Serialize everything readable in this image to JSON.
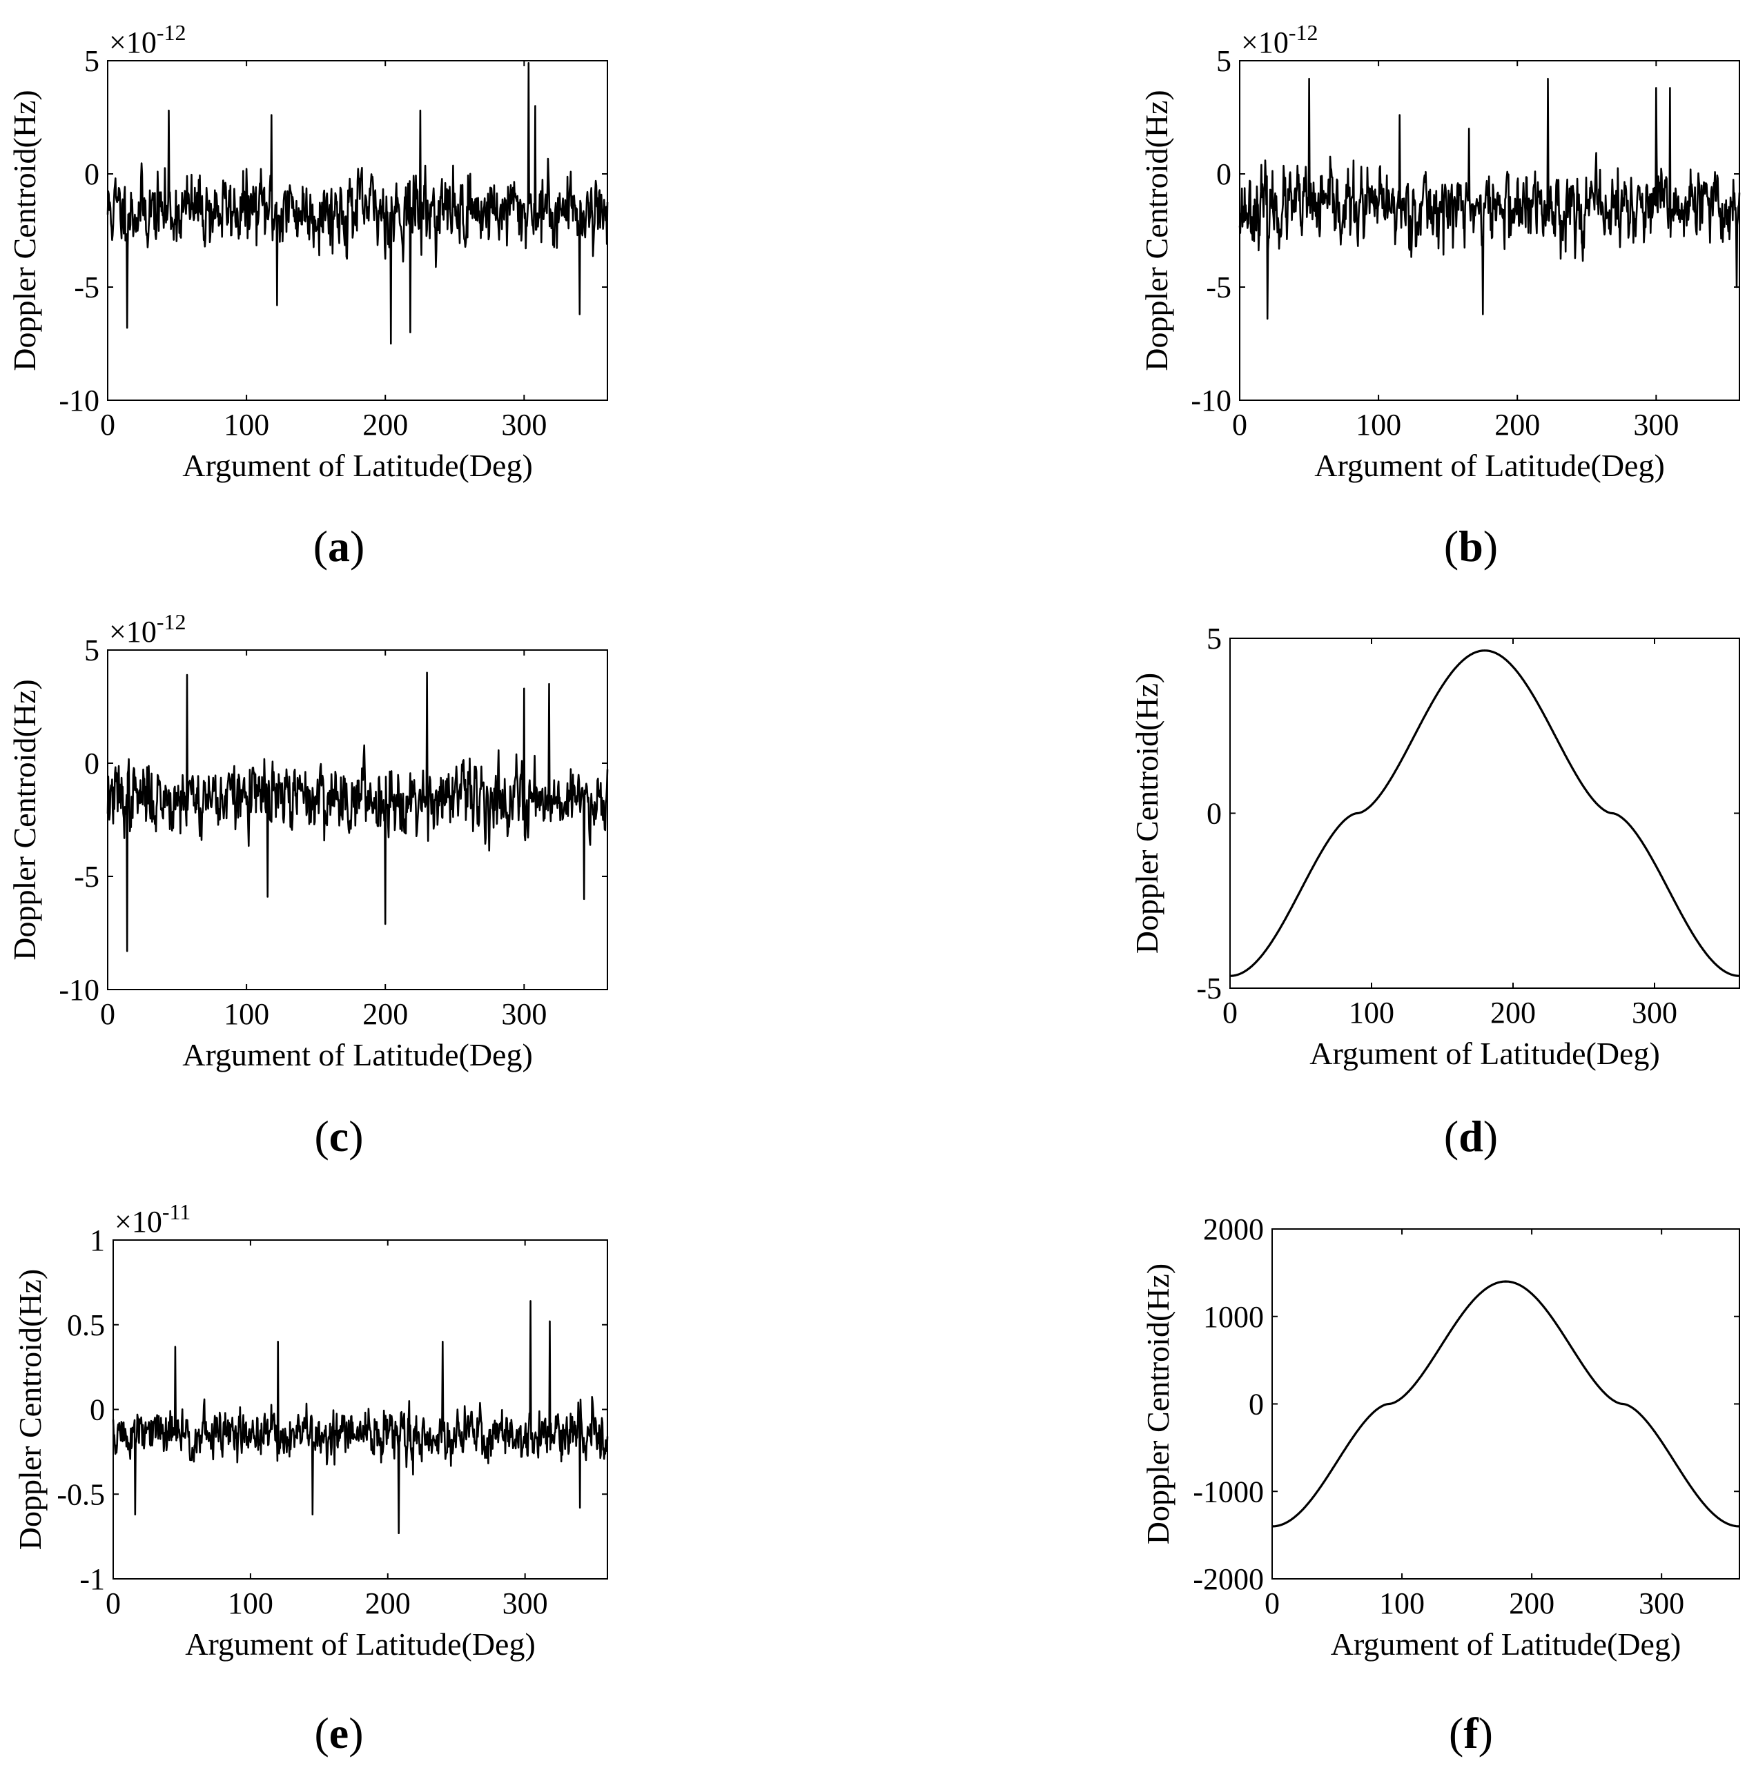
{
  "figure": {
    "panels": [
      {
        "id": "a",
        "label_open": "(",
        "label_letter": "a",
        "label_close": ")"
      },
      {
        "id": "b",
        "label_open": "(",
        "label_letter": "b",
        "label_close": ")"
      },
      {
        "id": "c",
        "label_open": "(",
        "label_letter": "c",
        "label_close": ")"
      },
      {
        "id": "d",
        "label_open": "(",
        "label_letter": "d",
        "label_close": ")"
      },
      {
        "id": "e",
        "label_open": "(",
        "label_letter": "e",
        "label_close": ")"
      },
      {
        "id": "f",
        "label_open": "(",
        "label_letter": "f",
        "label_close": ")"
      }
    ]
  },
  "chart_data": [
    {
      "id": "a",
      "type": "line",
      "title": "",
      "xlabel": "Argument of Latitude(Deg)",
      "ylabel": "Doppler Centroid(Hz)",
      "xlim": [
        0,
        360
      ],
      "ylim": [
        -10,
        5
      ],
      "xticks": [
        "0",
        "100",
        "200",
        "300"
      ],
      "yticks": [
        "-10",
        "-5",
        "0",
        "5"
      ],
      "xtick_values": [
        0,
        100,
        200,
        300
      ],
      "ytick_values": [
        -10,
        -5,
        0,
        5
      ],
      "exponent_base": "×10",
      "exponent": "-12",
      "grid": false,
      "series": [
        {
          "name": "Doppler centroid",
          "kind": "noise",
          "mean": -1.6,
          "std": 1.3,
          "seed": 11,
          "spikes": [
            [
              14,
              -6.8
            ],
            [
              44,
              2.8
            ],
            [
              118,
              2.6
            ],
            [
              122,
              -5.8
            ],
            [
              204,
              -7.5
            ],
            [
              218,
              -7.0
            ],
            [
              225,
              2.8
            ],
            [
              303,
              4.9
            ],
            [
              308,
              3.0
            ],
            [
              340,
              -6.2
            ]
          ]
        }
      ]
    },
    {
      "id": "b",
      "type": "line",
      "title": "",
      "xlabel": "Argument of Latitude(Deg)",
      "ylabel": "Doppler Centroid(Hz)",
      "xlim": [
        0,
        360
      ],
      "ylim": [
        -10,
        5
      ],
      "xticks": [
        "0",
        "100",
        "200",
        "300"
      ],
      "yticks": [
        "-10",
        "-5",
        "0",
        "5"
      ],
      "xtick_values": [
        0,
        100,
        200,
        300
      ],
      "ytick_values": [
        -10,
        -5,
        0,
        5
      ],
      "exponent_base": "×10",
      "exponent": "-12",
      "grid": false,
      "series": [
        {
          "name": "Doppler centroid",
          "kind": "noise",
          "mean": -1.5,
          "std": 1.3,
          "seed": 23,
          "spikes": [
            [
              20,
              -6.4
            ],
            [
              50,
              4.2
            ],
            [
              115,
              2.6
            ],
            [
              165,
              2.0
            ],
            [
              175,
              -6.2
            ],
            [
              222,
              4.2
            ],
            [
              300,
              3.8
            ],
            [
              310,
              3.8
            ],
            [
              358,
              -5.0
            ]
          ]
        }
      ]
    },
    {
      "id": "c",
      "type": "line",
      "title": "",
      "xlabel": "Argument of Latitude(Deg)",
      "ylabel": "Doppler Centroid(Hz)",
      "xlim": [
        0,
        360
      ],
      "ylim": [
        -10,
        5
      ],
      "xticks": [
        "0",
        "100",
        "200",
        "300"
      ],
      "yticks": [
        "-10",
        "-5",
        "0",
        "5"
      ],
      "xtick_values": [
        0,
        100,
        200,
        300
      ],
      "ytick_values": [
        -10,
        -5,
        0,
        5
      ],
      "exponent_base": "×10",
      "exponent": "-12",
      "grid": false,
      "series": [
        {
          "name": "Doppler centroid",
          "kind": "noise",
          "mean": -1.5,
          "std": 1.2,
          "seed": 37,
          "spikes": [
            [
              14,
              -8.3
            ],
            [
              57,
              3.9
            ],
            [
              115,
              -5.9
            ],
            [
              200,
              -7.1
            ],
            [
              230,
              4.0
            ],
            [
              300,
              3.3
            ],
            [
              318,
              3.5
            ],
            [
              343,
              -6.0
            ]
          ]
        }
      ]
    },
    {
      "id": "d",
      "type": "line",
      "title": "",
      "xlabel": "Argument of Latitude(Deg)",
      "ylabel": "Doppler Centroid(Hz)",
      "xlim": [
        0,
        360
      ],
      "ylim": [
        -5,
        5
      ],
      "xticks": [
        "0",
        "100",
        "200",
        "300"
      ],
      "yticks": [
        "-5",
        "0",
        "5"
      ],
      "xtick_values": [
        0,
        100,
        200,
        300
      ],
      "ytick_values": [
        -5,
        0,
        5
      ],
      "exponent_base": "",
      "exponent": "",
      "grid": false,
      "series": [
        {
          "name": "Doppler centroid",
          "kind": "smooth",
          "amplitude": 4.65
        }
      ]
    },
    {
      "id": "e",
      "type": "line",
      "title": "",
      "xlabel": "Argument of Latitude(Deg)",
      "ylabel": "Doppler Centroid(Hz)",
      "xlim": [
        0,
        360
      ],
      "ylim": [
        -1,
        1
      ],
      "xticks": [
        "0",
        "100",
        "200",
        "300"
      ],
      "yticks": [
        "-1",
        "-0.5",
        "0",
        "0.5",
        "1"
      ],
      "xtick_values": [
        0,
        100,
        200,
        300
      ],
      "ytick_values": [
        -1,
        -0.5,
        0,
        0.5,
        1
      ],
      "exponent_base": "×10",
      "exponent": "-11",
      "grid": false,
      "series": [
        {
          "name": "Doppler centroid",
          "kind": "noise",
          "mean": -0.15,
          "std": 0.12,
          "seed": 51,
          "spikes": [
            [
              16,
              -0.62
            ],
            [
              45,
              0.37
            ],
            [
              120,
              0.4
            ],
            [
              145,
              -0.62
            ],
            [
              208,
              -0.73
            ],
            [
              240,
              0.4
            ],
            [
              304,
              0.64
            ],
            [
              318,
              0.52
            ],
            [
              340,
              -0.58
            ]
          ]
        }
      ]
    },
    {
      "id": "f",
      "type": "line",
      "title": "",
      "xlabel": "Argument of Latitude(Deg)",
      "ylabel": "Doppler Centroid(Hz)",
      "xlim": [
        0,
        360
      ],
      "ylim": [
        -2000,
        2000
      ],
      "xticks": [
        "0",
        "100",
        "200",
        "300"
      ],
      "yticks": [
        "-2000",
        "-1000",
        "0",
        "1000",
        "2000"
      ],
      "xtick_values": [
        0,
        100,
        200,
        300
      ],
      "ytick_values": [
        -2000,
        -1000,
        0,
        1000,
        2000
      ],
      "exponent_base": "",
      "exponent": "",
      "grid": false,
      "series": [
        {
          "name": "Doppler centroid",
          "kind": "smooth",
          "amplitude": 1400
        }
      ]
    }
  ]
}
